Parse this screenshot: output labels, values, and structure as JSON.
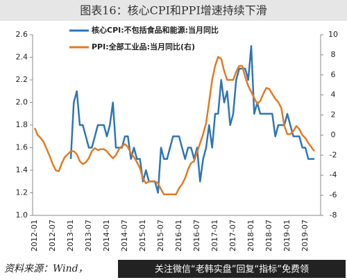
{
  "chart_data": {
    "type": "line",
    "title": "图表16：核心CPI和PPI增速持续下滑",
    "source": "资料来源：Wind，",
    "banner": "关注微信“老韩实盘”回复“指标”免费领",
    "categories": [
      "2012-01",
      null,
      null,
      null,
      null,
      null,
      "2012-07",
      null,
      null,
      null,
      null,
      null,
      "2013-01",
      null,
      null,
      null,
      null,
      null,
      "2013-07",
      null,
      null,
      null,
      null,
      null,
      "2014-01",
      null,
      null,
      null,
      null,
      null,
      "2014-07",
      null,
      null,
      null,
      null,
      null,
      "2015-01",
      null,
      null,
      null,
      null,
      null,
      "2015-07",
      null,
      null,
      null,
      null,
      null,
      "2016-01",
      null,
      null,
      null,
      null,
      null,
      "2016-07",
      null,
      null,
      null,
      null,
      null,
      "2017-01",
      null,
      null,
      null,
      null,
      null,
      "2017-07",
      null,
      null,
      null,
      null,
      null,
      "2018-01",
      null,
      null,
      null,
      null,
      null,
      "2018-07",
      null,
      null,
      null,
      null,
      null,
      "2019-01",
      null,
      null,
      null,
      null,
      null,
      "2019-07",
      null,
      null,
      null
    ],
    "series": [
      {
        "name": "核心CPI:不包括食品和能源:当月同比",
        "color": "#2e75b6",
        "axis": "y",
        "values": [
          null,
          null,
          null,
          null,
          null,
          null,
          null,
          null,
          null,
          null,
          null,
          null,
          1.5,
          2.0,
          2.1,
          1.8,
          1.8,
          1.7,
          1.6,
          1.6,
          1.7,
          1.8,
          1.8,
          1.8,
          1.7,
          1.8,
          2.0,
          1.6,
          1.6,
          1.6,
          1.7,
          1.7,
          1.5,
          1.6,
          1.5,
          1.5,
          1.3,
          1.4,
          1.3,
          1.3,
          1.3,
          1.2,
          1.6,
          1.5,
          1.5,
          1.6,
          1.7,
          1.7,
          1.7,
          1.6,
          1.5,
          1.6,
          1.6,
          1.5,
          1.6,
          1.3,
          1.5,
          1.6,
          1.8,
          1.6,
          1.9,
          1.9,
          2.2,
          2.0,
          2.1,
          1.8,
          1.9,
          2.2,
          2.3,
          2.3,
          2.3,
          2.2,
          2.5,
          1.9,
          2.0,
          1.9,
          1.9,
          1.9,
          1.9,
          1.9,
          1.7,
          1.8,
          1.8,
          1.8,
          1.9,
          1.8,
          1.7,
          1.7,
          1.7,
          1.6,
          1.6,
          1.5,
          1.5,
          1.5
        ]
      },
      {
        "name": "PPI:全部工业品:当月同比(右)",
        "color": "#e07b24",
        "axis": "y2",
        "values": [
          0.7,
          0.0,
          -0.3,
          -0.7,
          -1.4,
          -2.1,
          -2.9,
          -3.5,
          -3.6,
          -2.8,
          -2.2,
          -1.9,
          -1.6,
          -1.6,
          -1.9,
          -2.6,
          -2.9,
          -2.7,
          -2.3,
          -1.6,
          -1.3,
          -1.5,
          -1.4,
          -1.4,
          -1.6,
          -2.0,
          -2.3,
          -2.0,
          -1.4,
          -1.1,
          -0.9,
          -1.2,
          -1.8,
          -2.2,
          -2.7,
          -3.3,
          -4.3,
          -4.8,
          -4.6,
          -4.6,
          -4.6,
          -4.8,
          -5.4,
          -5.9,
          -5.9,
          -5.9,
          -5.9,
          -5.9,
          -5.3,
          -4.9,
          -4.3,
          -3.4,
          -2.8,
          -2.6,
          -1.7,
          -0.8,
          0.1,
          1.2,
          3.3,
          5.5,
          6.9,
          7.8,
          7.6,
          6.4,
          5.5,
          5.5,
          5.5,
          6.3,
          6.9,
          6.9,
          5.8,
          4.9,
          4.3,
          3.7,
          3.1,
          3.4,
          4.1,
          4.7,
          4.6,
          4.1,
          3.6,
          3.3,
          2.7,
          0.9,
          0.1,
          0.1,
          0.4,
          0.9,
          0.6,
          0.0,
          -0.3,
          -0.8,
          -1.2,
          -1.6
        ]
      }
    ],
    "ylim": [
      1.0,
      2.6
    ],
    "yticks": [
      {
        "value": 1.0,
        "label": "1.0"
      },
      1.2,
      1.4,
      1.6,
      1.8,
      {
        "value": 2.0,
        "label": "2.0"
      },
      2.2,
      2.4,
      2.6
    ],
    "y2lim": [
      -8,
      10
    ],
    "y2ticks": [
      -8,
      -6,
      -4,
      -2,
      0,
      2,
      4,
      6,
      8,
      10
    ],
    "grid": false
  }
}
